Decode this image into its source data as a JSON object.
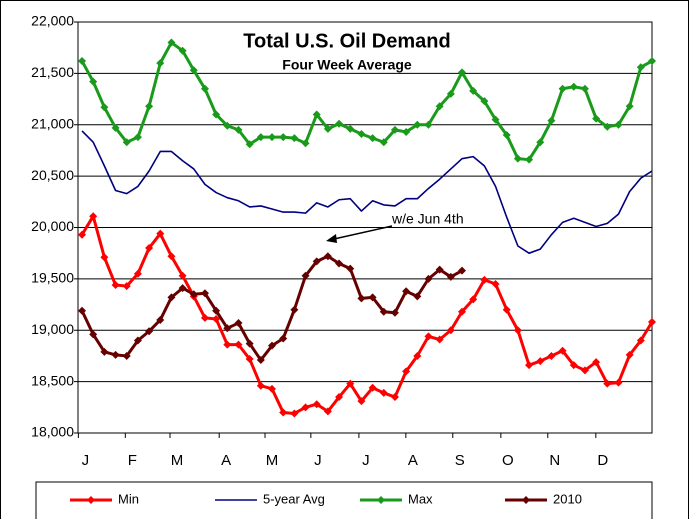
{
  "chart_data": {
    "type": "line",
    "title": "Total U.S. Oil Demand",
    "subtitle": "Four Week Average",
    "annotation": "w/e Jun 4th",
    "x": [
      1,
      2,
      3,
      4,
      5,
      6,
      7,
      8,
      9,
      10,
      11,
      12,
      13,
      14,
      15,
      16,
      17,
      18,
      19,
      20,
      21,
      22,
      23,
      24,
      25,
      26,
      27,
      28,
      29,
      30,
      31,
      32,
      33,
      34,
      35,
      36,
      37,
      38,
      39,
      40,
      41,
      42,
      43,
      44,
      45,
      46,
      47,
      48,
      49,
      50,
      51,
      52
    ],
    "xlim": [
      0.64,
      52
    ],
    "xticks": [
      {
        "value": 1.3,
        "label": "J"
      },
      {
        "value": 5.5,
        "label": "F"
      },
      {
        "value": 9.5,
        "label": "M"
      },
      {
        "value": 13.9,
        "label": "A"
      },
      {
        "value": 18.0,
        "label": "M"
      },
      {
        "value": 22.1,
        "label": "J"
      },
      {
        "value": 26.4,
        "label": "J"
      },
      {
        "value": 30.6,
        "label": "A"
      },
      {
        "value": 34.8,
        "label": "S"
      },
      {
        "value": 39.1,
        "label": "O"
      },
      {
        "value": 43.3,
        "label": "N"
      },
      {
        "value": 47.6,
        "label": "D"
      }
    ],
    "ylim": [
      18000,
      22000
    ],
    "yticks": [
      {
        "value": 18000,
        "label": "18,000"
      },
      {
        "value": 18500,
        "label": "18,500"
      },
      {
        "value": 19000,
        "label": "19,000"
      },
      {
        "value": 19500,
        "label": "19,500"
      },
      {
        "value": 20000,
        "label": "20,000"
      },
      {
        "value": 20500,
        "label": "20,500"
      },
      {
        "value": 21000,
        "label": "21,000"
      },
      {
        "value": 21500,
        "label": "21,500"
      },
      {
        "value": 22000,
        "label": "22,000"
      }
    ],
    "grid": true,
    "legend": "bottom",
    "series": [
      {
        "name": "Min",
        "color": "#ff0000",
        "markers": true,
        "values": [
          19930,
          20110,
          19710,
          19440,
          19430,
          19550,
          19800,
          19940,
          19720,
          19530,
          19330,
          19120,
          19110,
          18860,
          18860,
          18720,
          18460,
          18430,
          18200,
          18190,
          18250,
          18280,
          18210,
          18350,
          18480,
          18310,
          18440,
          18390,
          18350,
          18600,
          18750,
          18940,
          18910,
          19000,
          19180,
          19300,
          19490,
          19450,
          19200,
          19000,
          18660,
          18700,
          18750,
          18800,
          18660,
          18610,
          18690,
          18480,
          18490,
          18760,
          18900,
          19080
        ]
      },
      {
        "name": "5-year Avg",
        "color": "#000080",
        "markers": false,
        "values": [
          20940,
          20830,
          20600,
          20360,
          20330,
          20400,
          20550,
          20740,
          20740,
          20650,
          20570,
          20420,
          20340,
          20290,
          20260,
          20200,
          20210,
          20180,
          20150,
          20150,
          20140,
          20240,
          20200,
          20270,
          20280,
          20160,
          20260,
          20220,
          20210,
          20280,
          20280,
          20380,
          20470,
          20570,
          20670,
          20690,
          20600,
          20400,
          20100,
          19820,
          19750,
          19790,
          19930,
          20050,
          20090,
          20050,
          20010,
          20040,
          20130,
          20350,
          20480,
          20550
        ]
      },
      {
        "name": "Max",
        "color": "#1a9a1a",
        "markers": true,
        "values": [
          21620,
          21420,
          21170,
          20970,
          20830,
          20880,
          21180,
          21600,
          21800,
          21720,
          21530,
          21350,
          21100,
          20990,
          20950,
          20810,
          20880,
          20880,
          20880,
          20870,
          20820,
          21100,
          20960,
          21010,
          20960,
          20910,
          20870,
          20830,
          20950,
          20930,
          21000,
          21000,
          21180,
          21300,
          21510,
          21330,
          21230,
          21050,
          20900,
          20670,
          20660,
          20830,
          21040,
          21350,
          21370,
          21350,
          21060,
          20980,
          21000,
          21180,
          21560,
          21620
        ]
      },
      {
        "name": "2010",
        "color": "#660000",
        "markers": true,
        "values": [
          19190,
          18960,
          18790,
          18760,
          18750,
          18900,
          18990,
          19100,
          19320,
          19410,
          19350,
          19360,
          19190,
          19020,
          19070,
          18870,
          18710,
          18850,
          18920,
          19200,
          19530,
          19670,
          19720,
          19650,
          19600,
          19310,
          19320,
          19180,
          19170,
          19380,
          19330,
          19500,
          19590,
          19520,
          19580,
          null,
          null,
          null,
          null,
          null,
          null,
          null,
          null,
          null,
          null,
          null,
          null,
          null,
          null,
          null,
          null,
          null
        ]
      }
    ]
  }
}
